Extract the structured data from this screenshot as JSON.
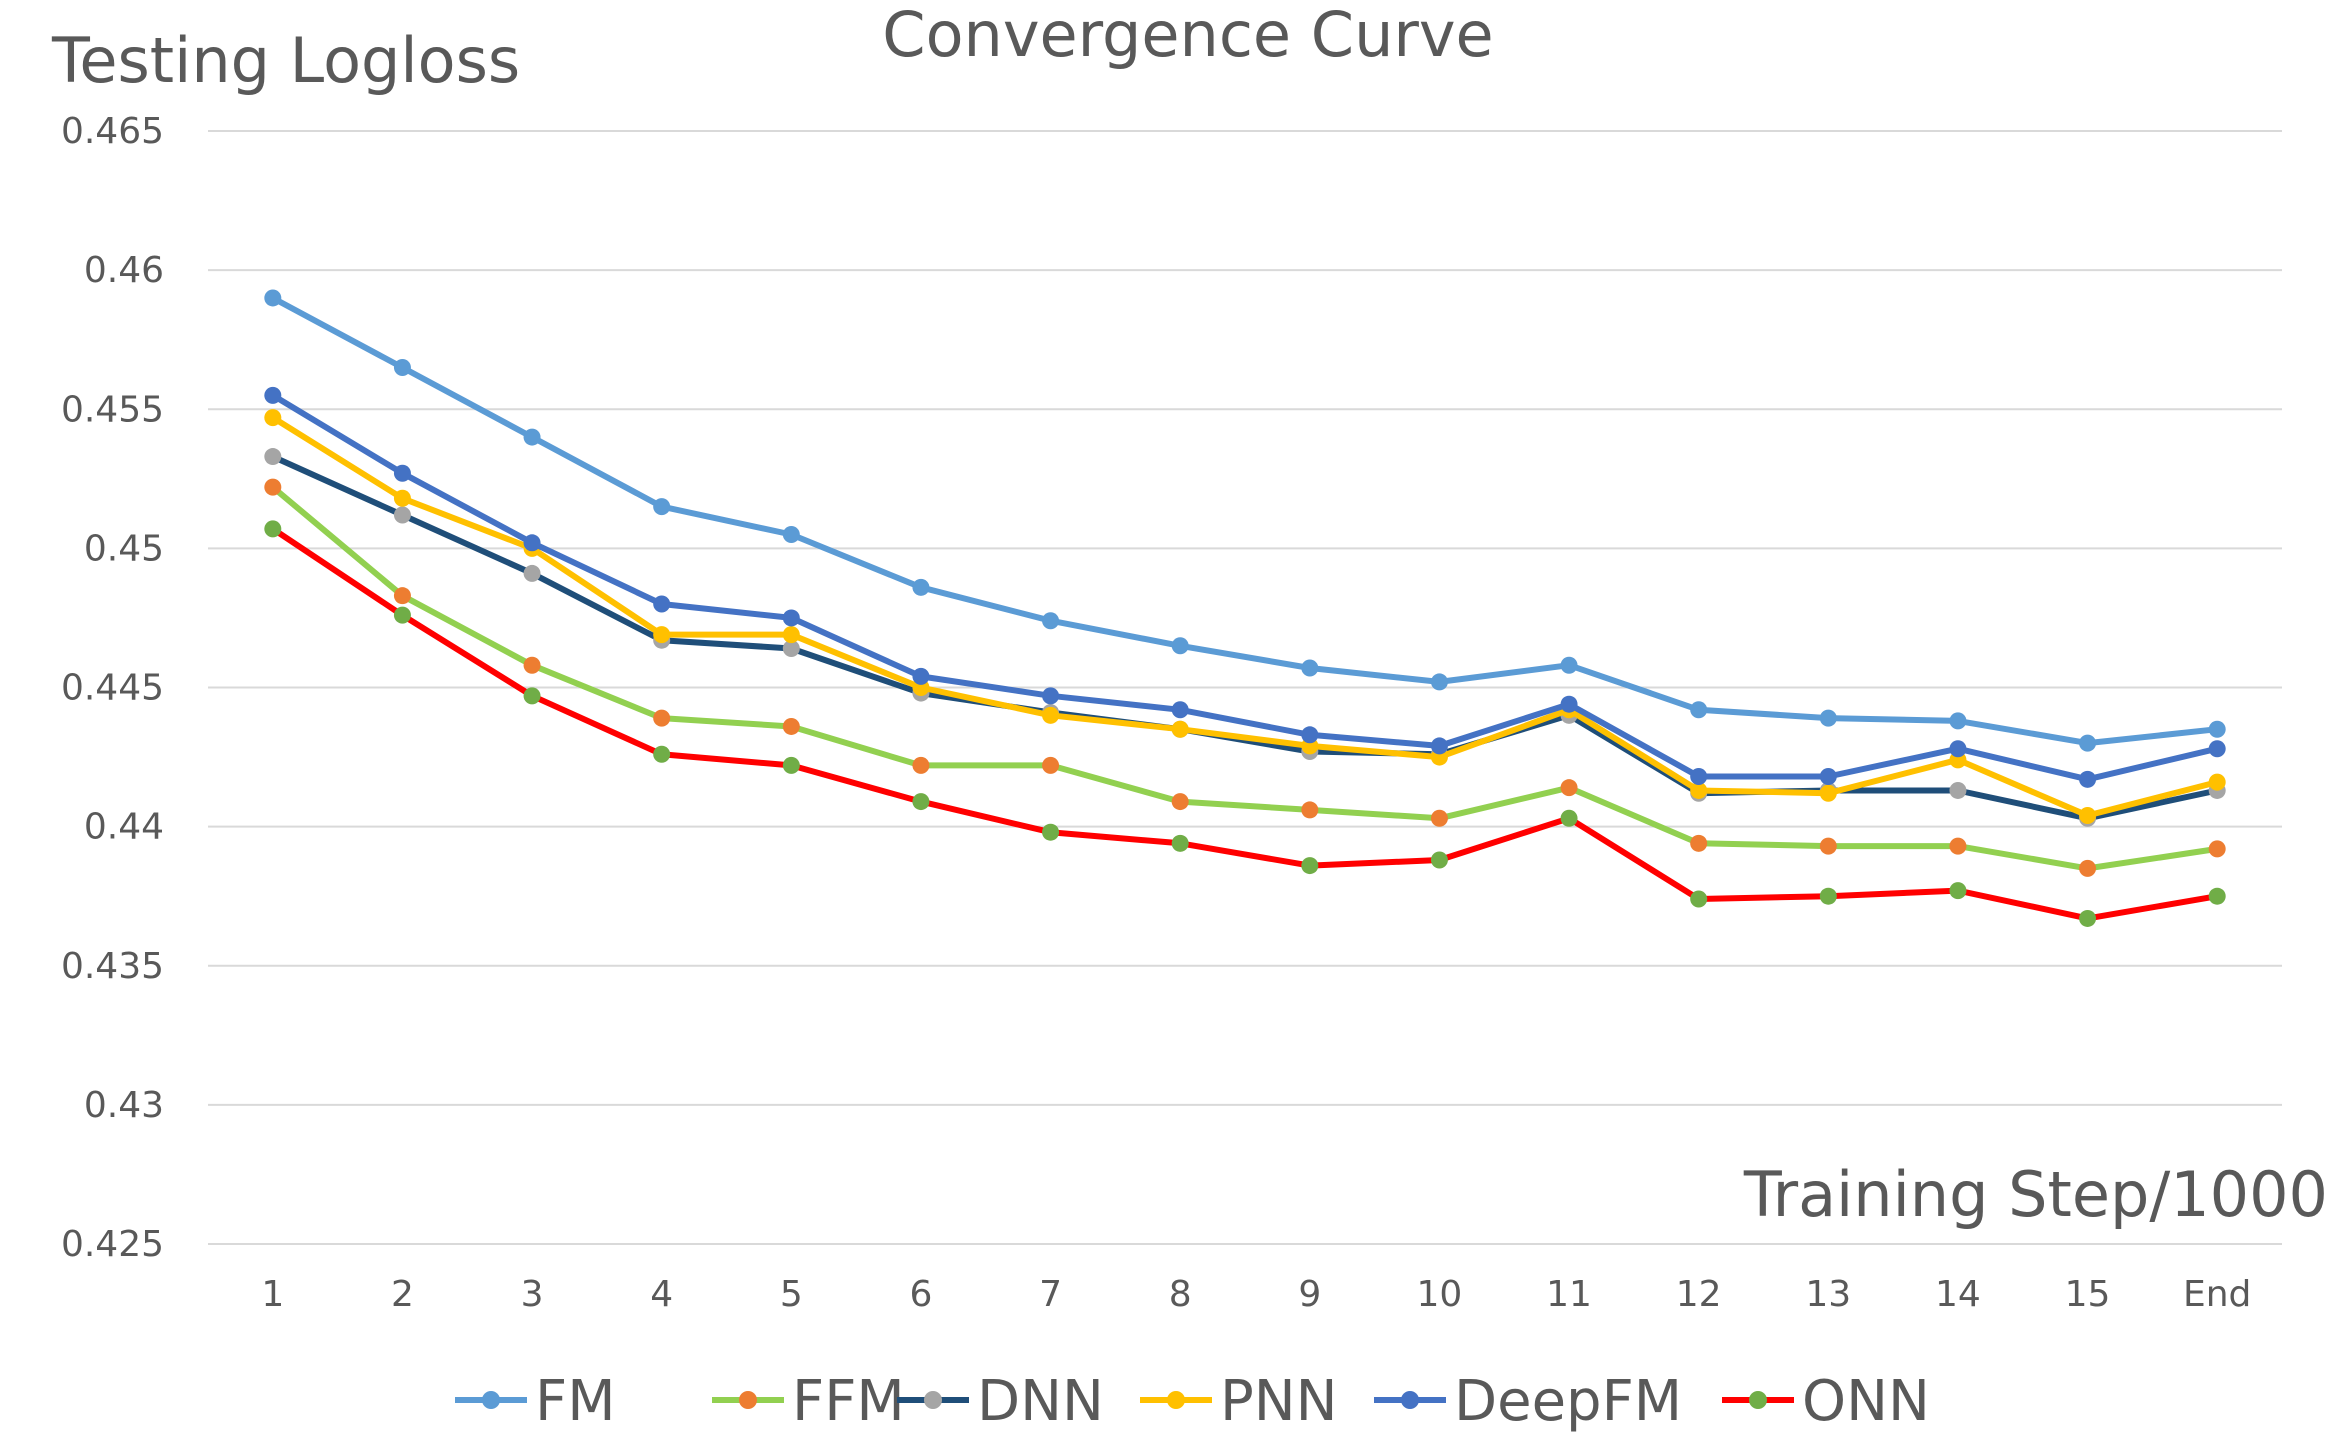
{
  "chart_data": {
    "type": "line",
    "title": "Convergence Curve",
    "ylabel": "Testing Logloss",
    "xlabel": "Training Step/1000",
    "categories": [
      "1",
      "2",
      "3",
      "4",
      "5",
      "6",
      "7",
      "8",
      "9",
      "10",
      "11",
      "12",
      "13",
      "14",
      "15",
      "End"
    ],
    "ylim": [
      0.425,
      0.465
    ],
    "yticks": [
      0.425,
      0.43,
      0.435,
      0.44,
      0.445,
      0.45,
      0.455,
      0.46,
      0.465
    ],
    "ytick_labels": [
      "0.425",
      "0.43",
      "0.435",
      "0.44",
      "0.445",
      "0.45",
      "0.455",
      "0.46",
      "0.465"
    ],
    "grid": true,
    "legend_position": "bottom",
    "series": [
      {
        "name": "FM",
        "line_color": "#5B9BD5",
        "marker_color": "#5B9BD5",
        "values": [
          0.459,
          0.4565,
          0.454,
          0.4515,
          0.4505,
          0.4486,
          0.4474,
          0.4465,
          0.4457,
          0.4452,
          0.4458,
          0.4442,
          0.4439,
          0.4438,
          0.443,
          0.4435
        ]
      },
      {
        "name": "FFM",
        "line_color": "#92D050",
        "marker_color": "#ED7D31",
        "values": [
          0.4522,
          0.4483,
          0.4458,
          0.4439,
          0.4436,
          0.4422,
          0.4422,
          0.4409,
          0.4406,
          0.4403,
          0.4414,
          0.4394,
          0.4393,
          0.4393,
          0.4385,
          0.4392
        ]
      },
      {
        "name": "DNN",
        "line_color": "#1F4E79",
        "marker_color": "#A5A5A5",
        "values": [
          0.4533,
          0.4512,
          0.4491,
          0.4467,
          0.4464,
          0.4448,
          0.4441,
          0.4435,
          0.4427,
          0.4426,
          0.444,
          0.4412,
          0.4413,
          0.4413,
          0.4403,
          0.4413
        ]
      },
      {
        "name": "PNN",
        "line_color": "#FFC000",
        "marker_color": "#FFC000",
        "values": [
          0.4547,
          0.4518,
          0.45,
          0.4469,
          0.4469,
          0.445,
          0.444,
          0.4435,
          0.4429,
          0.4425,
          0.4442,
          0.4413,
          0.4412,
          0.4424,
          0.4404,
          0.4416
        ]
      },
      {
        "name": "DeepFM",
        "line_color": "#4472C4",
        "marker_color": "#4472C4",
        "values": [
          0.4555,
          0.4527,
          0.4502,
          0.448,
          0.4475,
          0.4454,
          0.4447,
          0.4442,
          0.4433,
          0.4429,
          0.4444,
          0.4418,
          0.4418,
          0.4428,
          0.4417,
          0.4428
        ]
      },
      {
        "name": "ONN",
        "line_color": "#FF0000",
        "marker_color": "#70AD47",
        "values": [
          0.4507,
          0.4476,
          0.4447,
          0.4426,
          0.4422,
          0.4409,
          0.4398,
          0.4394,
          0.4386,
          0.4388,
          0.4403,
          0.4374,
          0.4375,
          0.4377,
          0.4367,
          0.4375
        ]
      }
    ]
  }
}
